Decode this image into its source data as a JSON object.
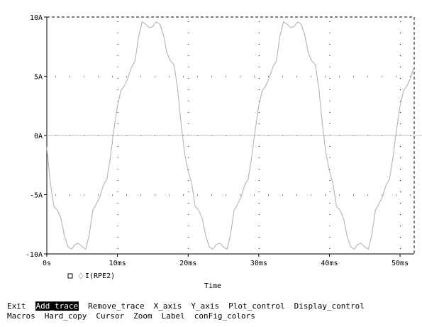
{
  "chart_data": {
    "type": "line",
    "xlabel": "Time",
    "ylabel": "",
    "x_unit": "ms",
    "xlim": [
      0,
      52
    ],
    "ylim": [
      -10,
      10
    ],
    "x_ticks": [
      {
        "value": 0,
        "label": "0s"
      },
      {
        "value": 10,
        "label": "10ms"
      },
      {
        "value": 20,
        "label": "20ms"
      },
      {
        "value": 30,
        "label": "30ms"
      },
      {
        "value": 40,
        "label": "40ms"
      },
      {
        "value": 50,
        "label": "50ms"
      }
    ],
    "y_ticks": [
      {
        "value": 10,
        "label": "10A"
      },
      {
        "value": 5,
        "label": "5A"
      },
      {
        "value": 0,
        "label": "0A"
      },
      {
        "value": -5,
        "label": "-5A"
      },
      {
        "value": -10,
        "label": "-10A"
      }
    ],
    "grid": "dotted",
    "legend_position": "bottom-left",
    "series": [
      {
        "name": "I(RPE2)",
        "color": "#b8b8b8",
        "x": [
          0,
          0.5,
          1,
          1.5,
          2,
          2.5,
          3,
          3.5,
          4,
          4.5,
          5,
          5.5,
          6,
          6.5,
          7,
          7.5,
          8,
          8.5,
          9,
          9.5,
          10,
          10.5,
          11,
          11.5,
          12,
          12.5,
          13,
          13.5,
          14,
          14.5,
          15,
          15.5,
          16,
          16.5,
          17,
          17.5,
          18,
          18.5,
          19,
          19.5,
          20,
          20.5,
          21,
          21.5,
          22,
          22.5,
          23,
          23.5,
          24,
          24.5,
          25,
          25.5,
          26,
          26.5,
          27,
          27.5,
          28,
          28.5,
          29,
          29.5,
          30,
          30.5,
          31,
          31.5,
          32,
          32.5,
          33,
          33.5,
          34,
          34.5,
          35,
          35.5,
          36,
          36.5,
          37,
          37.5,
          38,
          38.5,
          39,
          39.5,
          40,
          40.5,
          41,
          41.5,
          42,
          42.5,
          43,
          43.5,
          44,
          44.5,
          45,
          45.5,
          46,
          46.5,
          47,
          47.5,
          48,
          48.5,
          49,
          49.5,
          50,
          50.5,
          51,
          51.5,
          52
        ],
        "y": [
          -1,
          -4,
          -6,
          -6.3,
          -7,
          -8.5,
          -9.4,
          -9.6,
          -9.2,
          -9.1,
          -9.4,
          -9.6,
          -8.4,
          -6.3,
          -5.8,
          -5.2,
          -4.2,
          -3.7,
          -1.8,
          0.5,
          2.5,
          3.8,
          4.2,
          4.9,
          5.8,
          6.3,
          8.4,
          9.6,
          9.4,
          9.1,
          9.2,
          9.6,
          9.4,
          8.5,
          7,
          6.3,
          6,
          4,
          1,
          -1.5,
          -3,
          -4,
          -6,
          -6.3,
          -7,
          -8.5,
          -9.4,
          -9.6,
          -9.2,
          -9.1,
          -9.4,
          -9.6,
          -8.4,
          -6.3,
          -5.8,
          -5.2,
          -4.2,
          -3.7,
          -1.8,
          0.5,
          2.5,
          3.8,
          4.2,
          4.9,
          5.8,
          6.3,
          8.4,
          9.6,
          9.4,
          9.1,
          9.2,
          9.6,
          9.4,
          8.5,
          7,
          6.3,
          6,
          4,
          1,
          -1.5,
          -3,
          -4,
          -6,
          -6.3,
          -7,
          -8.5,
          -9.4,
          -9.6,
          -9.2,
          -9.1,
          -9.4,
          -9.6,
          -8.4,
          -6.3,
          -5.8,
          -5.2,
          -4.2,
          -3.7,
          -1.8,
          0.5,
          2.5,
          3.8,
          4.2,
          4.9,
          5.8
        ]
      }
    ]
  },
  "menu": {
    "row1": [
      "Exit",
      "Add_trace",
      "Remove_trace",
      "X_axis",
      "Y_axis",
      "Plot_control",
      "Display_control"
    ],
    "row2": [
      "Macros",
      "Hard_copy",
      "Cursor",
      "Zoom",
      "Label",
      "conFig_colors"
    ],
    "selected": "Add_trace"
  }
}
